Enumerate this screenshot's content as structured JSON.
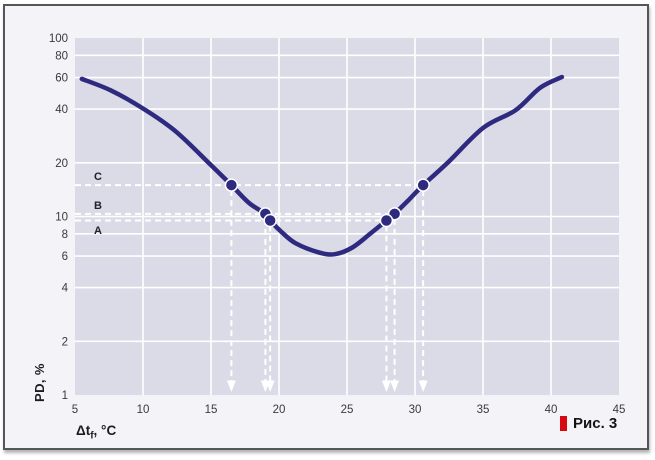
{
  "figure": {
    "caption": "Рис. 3",
    "marker_color": "#d7080f"
  },
  "chart_data": {
    "type": "line",
    "title": "",
    "xlabel": "Δtf, °C",
    "xlabel_parts": {
      "main": "Δt",
      "sub": "f",
      "unit": ", °C"
    },
    "ylabel": "PD, %",
    "x_scale": "linear",
    "y_scale": "log",
    "xlim": [
      5,
      45
    ],
    "ylim": [
      1,
      100
    ],
    "x_ticks": [
      5,
      10,
      15,
      20,
      25,
      30,
      35,
      40,
      45
    ],
    "y_ticks": [
      1,
      2,
      4,
      6,
      8,
      10,
      20,
      40,
      60,
      80,
      100
    ],
    "grid": true,
    "legend": false,
    "colors": {
      "curve": "#2e2a7f",
      "plot_bg": "#dbdae7",
      "grid": "#ffffff",
      "guide": "#ffffff",
      "marker_fill": "#2e2a7f",
      "marker_stroke": "#ffffff"
    },
    "curve_points": [
      [
        5.5,
        59
      ],
      [
        7.6,
        51
      ],
      [
        10,
        40.3
      ],
      [
        12.4,
        30
      ],
      [
        15,
        19.4
      ],
      [
        16.5,
        15
      ],
      [
        17.8,
        11.9
      ],
      [
        19.0,
        10.35
      ],
      [
        19.35,
        9.5
      ],
      [
        20.1,
        8.3
      ],
      [
        21.2,
        7.1
      ],
      [
        22.9,
        6.3
      ],
      [
        24.1,
        6.15
      ],
      [
        25.4,
        6.7
      ],
      [
        26.7,
        8.0
      ],
      [
        27.9,
        9.5
      ],
      [
        28.5,
        10.35
      ],
      [
        29.5,
        12.3
      ],
      [
        30.6,
        15
      ],
      [
        32.4,
        20
      ],
      [
        35,
        31.3
      ],
      [
        37.4,
        39.4
      ],
      [
        39.2,
        52.6
      ],
      [
        40.8,
        60.5
      ]
    ],
    "levels": [
      {
        "label": "C",
        "pd": 15,
        "x_left": 16.5,
        "x_right": 30.6,
        "label_side": "above"
      },
      {
        "label": "B",
        "pd": 10.35,
        "x_left": 19.0,
        "x_right": 28.5,
        "label_side": "above"
      },
      {
        "label": "A",
        "pd": 9.5,
        "x_left": 19.35,
        "x_right": 27.9,
        "label_side": "below"
      }
    ]
  }
}
